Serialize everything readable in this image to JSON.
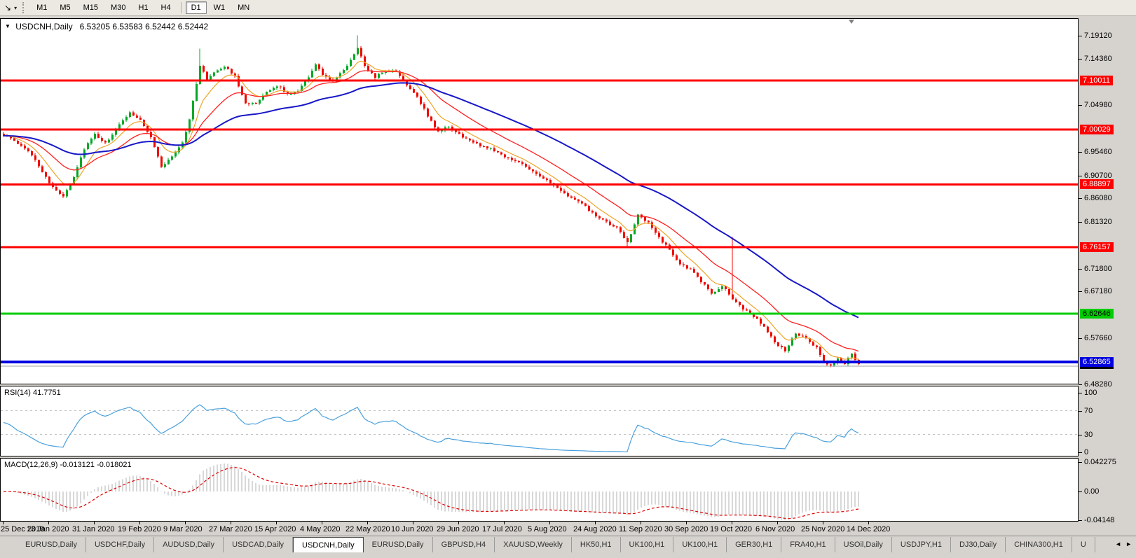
{
  "icons": {
    "cursor_tool": "↘",
    "dropdown_caret": "▾",
    "title_marker": "▼",
    "scroll_left": "◄",
    "scroll_right": "►"
  },
  "toolbar": {
    "timeframes": [
      "M1",
      "M5",
      "M15",
      "M30",
      "H1",
      "H4",
      "D1",
      "W1",
      "MN"
    ],
    "active_timeframe": "D1"
  },
  "chart": {
    "title_symbol": "USDCNH,Daily",
    "title_ohlc": "6.53205 6.53583 6.52442 6.52442",
    "axis_ticks": [
      {
        "label": "7.19120",
        "price": 7.1912
      },
      {
        "label": "7.14360",
        "price": 7.1436
      },
      {
        "label": "7.04980",
        "price": 7.0498
      },
      {
        "label": "6.95460",
        "price": 6.9546
      },
      {
        "label": "6.90700",
        "price": 6.907
      },
      {
        "label": "6.86080",
        "price": 6.8608
      },
      {
        "label": "6.81320",
        "price": 6.8132
      },
      {
        "label": "6.71800",
        "price": 6.718
      },
      {
        "label": "6.67180",
        "price": 6.6718
      },
      {
        "label": "6.57660",
        "price": 6.5766
      },
      {
        "label": "6.48280",
        "price": 6.4828
      }
    ],
    "levels": [
      {
        "label": "7.10011",
        "price": 7.10011,
        "color": "#ff0000",
        "text": "#ffffff",
        "thickness": 3
      },
      {
        "label": "7.00029",
        "price": 7.00029,
        "color": "#ff0000",
        "text": "#ffffff",
        "thickness": 3
      },
      {
        "label": "6.88897",
        "price": 6.88897,
        "color": "#ff0000",
        "text": "#ffffff",
        "thickness": 3
      },
      {
        "label": "6.76157",
        "price": 6.76157,
        "color": "#ff0000",
        "text": "#ffffff",
        "thickness": 3
      },
      {
        "label": "6.62646",
        "price": 6.62646,
        "color": "#00cc00",
        "text": "#000000",
        "thickness": 3
      },
      {
        "label": "6.52865",
        "price": 6.52865,
        "color": "#0000e0",
        "text": "#ffffff",
        "thickness": 4
      }
    ],
    "current_price": {
      "label": "6.52442",
      "price": 6.52442,
      "badge_color": "#000000",
      "text": "#ffffff"
    }
  },
  "chart_data": {
    "type": "candlestick",
    "symbol": "USDCNH",
    "timeframe": "Daily",
    "n_candles": 245,
    "seed": 1337,
    "noise": 0.0045,
    "wick": 0.007,
    "last_close": 6.52442,
    "up_color": "#00a826",
    "down_color": "#f00800",
    "price_axis_range": [
      6.4828,
      7.2266
    ],
    "waypoints": [
      [
        0,
        6.99
      ],
      [
        4,
        6.972
      ],
      [
        8,
        6.95
      ],
      [
        11,
        6.916
      ],
      [
        14,
        6.882
      ],
      [
        17,
        6.866
      ],
      [
        20,
        6.905
      ],
      [
        23,
        6.962
      ],
      [
        26,
        6.99
      ],
      [
        29,
        6.972
      ],
      [
        32,
        7.0
      ],
      [
        36,
        7.036
      ],
      [
        39,
        7.02
      ],
      [
        42,
        6.985
      ],
      [
        45,
        6.925
      ],
      [
        48,
        6.945
      ],
      [
        51,
        6.975
      ],
      [
        53,
        7.02
      ],
      [
        55,
        7.095
      ],
      [
        56,
        7.13
      ],
      [
        58,
        7.102
      ],
      [
        60,
        7.118
      ],
      [
        63,
        7.128
      ],
      [
        66,
        7.108
      ],
      [
        69,
        7.055
      ],
      [
        72,
        7.052
      ],
      [
        75,
        7.075
      ],
      [
        78,
        7.09
      ],
      [
        81,
        7.072
      ],
      [
        84,
        7.08
      ],
      [
        87,
        7.108
      ],
      [
        89,
        7.132
      ],
      [
        91,
        7.112
      ],
      [
        94,
        7.098
      ],
      [
        97,
        7.12
      ],
      [
        100,
        7.152
      ],
      [
        101,
        7.168
      ],
      [
        103,
        7.128
      ],
      [
        106,
        7.108
      ],
      [
        109,
        7.12
      ],
      [
        112,
        7.118
      ],
      [
        115,
        7.092
      ],
      [
        118,
        7.068
      ],
      [
        121,
        7.028
      ],
      [
        124,
        6.996
      ],
      [
        127,
        7.006
      ],
      [
        130,
        6.99
      ],
      [
        133,
        6.978
      ],
      [
        136,
        6.968
      ],
      [
        139,
        6.962
      ],
      [
        142,
        6.95
      ],
      [
        145,
        6.938
      ],
      [
        148,
        6.932
      ],
      [
        151,
        6.916
      ],
      [
        154,
        6.902
      ],
      [
        157,
        6.886
      ],
      [
        160,
        6.87
      ],
      [
        163,
        6.858
      ],
      [
        166,
        6.844
      ],
      [
        169,
        6.824
      ],
      [
        172,
        6.812
      ],
      [
        175,
        6.8
      ],
      [
        178,
        6.772
      ],
      [
        181,
        6.826
      ],
      [
        184,
        6.81
      ],
      [
        187,
        6.782
      ],
      [
        190,
        6.756
      ],
      [
        193,
        6.728
      ],
      [
        196,
        6.716
      ],
      [
        199,
        6.692
      ],
      [
        202,
        6.668
      ],
      [
        205,
        6.682
      ],
      [
        208,
        6.658
      ],
      [
        211,
        6.636
      ],
      [
        214,
        6.622
      ],
      [
        217,
        6.6
      ],
      [
        220,
        6.568
      ],
      [
        223,
        6.552
      ],
      [
        226,
        6.586
      ],
      [
        229,
        6.576
      ],
      [
        232,
        6.556
      ],
      [
        234,
        6.528
      ],
      [
        236,
        6.52
      ],
      [
        238,
        6.536
      ],
      [
        240,
        6.526
      ],
      [
        242,
        6.546
      ],
      [
        244,
        6.5244
      ]
    ],
    "spikes": [
      {
        "i": 56,
        "high": 7.165
      },
      {
        "i": 101,
        "high": 7.192
      },
      {
        "i": 178,
        "low": 6.762
      },
      {
        "i": 208,
        "high": 6.782
      }
    ],
    "moving_averages": [
      {
        "name": "fast",
        "period": 8,
        "color": "#eda428",
        "width": 1.2
      },
      {
        "name": "mid",
        "period": 21,
        "color": "#ff2020",
        "width": 1.3
      },
      {
        "name": "slow",
        "period": 55,
        "color": "#1818c8",
        "width": 2
      }
    ],
    "current_price_line_color": "#a0a0a0"
  },
  "rsi": {
    "label": "RSI(14) 41.7751",
    "value": 41.7751,
    "period": 14,
    "line_color": "#4aa0dc",
    "axis": [
      {
        "label": "100",
        "value": 100
      },
      {
        "label": "70",
        "value": 70
      },
      {
        "label": "30",
        "value": 30
      },
      {
        "label": "0",
        "value": 0
      }
    ],
    "dashed_levels": [
      70,
      30
    ]
  },
  "macd": {
    "label": "MACD(12,26,9) -0.013121 -0.018021",
    "macd_value": -0.013121,
    "signal_value": -0.018021,
    "histogram_color": "#b0b0b0",
    "signal_color": "#e00000",
    "axis": [
      {
        "label": "0.042275",
        "value": 0.042275
      },
      {
        "label": "0.00",
        "value": 0
      },
      {
        "label": "-0.04148",
        "value": -0.04148
      }
    ]
  },
  "dates": [
    "25 Dec 2019",
    "13 Jan 2020",
    "31 Jan 2020",
    "19 Feb 2020",
    "9 Mar 2020",
    "27 Mar 2020",
    "15 Apr 2020",
    "4 May 2020",
    "22 May 2020",
    "10 Jun 2020",
    "29 Jun 2020",
    "17 Jul 2020",
    "5 Aug 2020",
    "24 Aug 2020",
    "11 Sep 2020",
    "30 Sep 2020",
    "19 Oct 2020",
    "6 Nov 2020",
    "25 Nov 2020",
    "14 Dec 2020"
  ],
  "tabs": {
    "items": [
      "EURUSD,Daily",
      "USDCHF,Daily",
      "AUDUSD,Daily",
      "USDCAD,Daily",
      "USDCNH,Daily",
      "EURUSD,Daily",
      "GBPUSD,H4",
      "XAUUSD,Weekly",
      "HK50,H1",
      "UK100,H1",
      "UK100,H1",
      "GER30,H1",
      "FRA40,H1",
      "USOil,Daily",
      "USDJPY,H1",
      "DJ30,Daily",
      "CHINA300,H1",
      "U"
    ],
    "active_index": 4
  }
}
